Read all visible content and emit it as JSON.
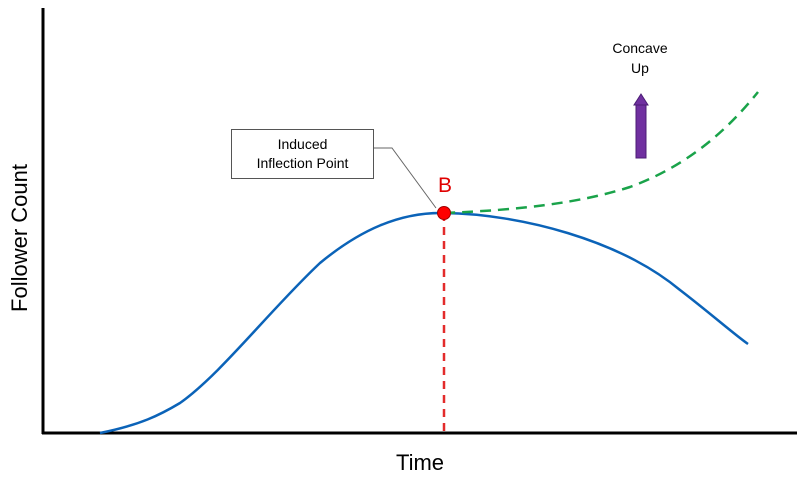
{
  "axes": {
    "ylabel": "Follower Count",
    "xlabel": "Time"
  },
  "callout": {
    "line1": "Induced",
    "line2": "Inflection Point"
  },
  "point": {
    "label": "B",
    "color": "#ff0000"
  },
  "annotation": {
    "line1": "Concave",
    "line2": "Up",
    "arrow_color": "#7030a0"
  },
  "curves": {
    "solid_color": "#0b63b8",
    "dashed_color": "#1aa34a",
    "vline_color": "#e32b2b"
  }
}
